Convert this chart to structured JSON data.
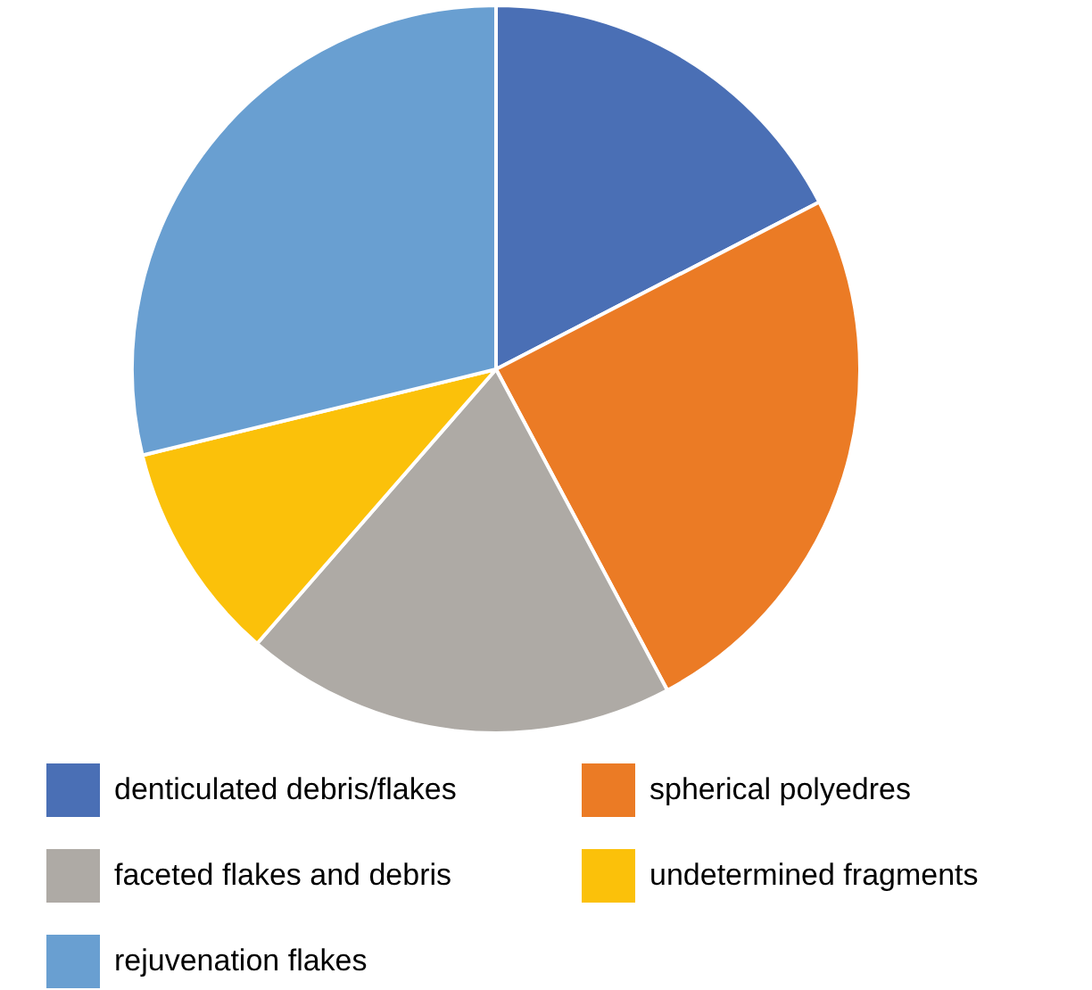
{
  "chart_data": {
    "type": "pie",
    "categories": [
      "denticulated debris/flakes",
      "spherical polyedres",
      "faceted flakes and debris",
      "undetermined fragments",
      "rejuvenation flakes"
    ],
    "values": [
      17.4,
      24.8,
      19.2,
      9.8,
      28.8
    ],
    "colors": [
      "#4a6fb5",
      "#eb7b25",
      "#aeaaa5",
      "#fbc10a",
      "#699fd1"
    ],
    "legend": "bottom"
  }
}
